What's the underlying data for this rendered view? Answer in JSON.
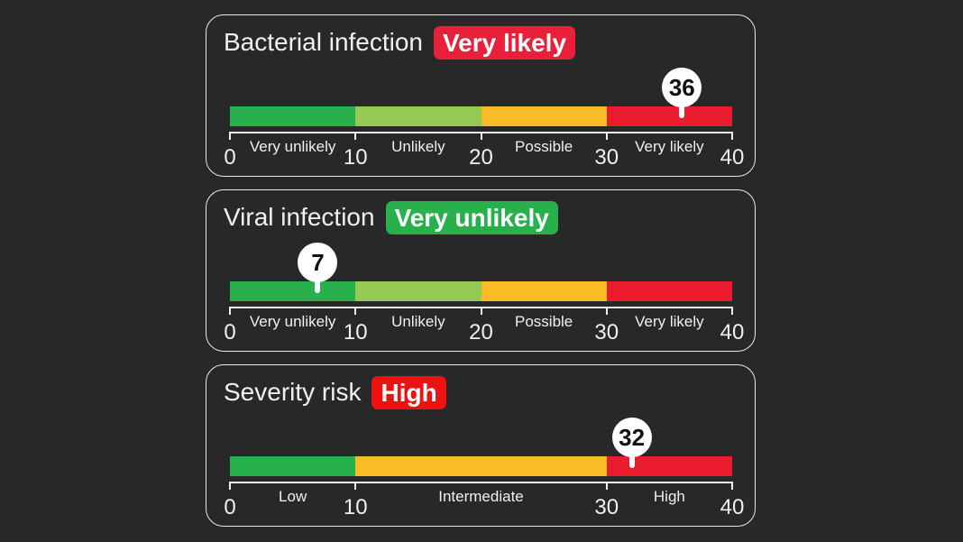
{
  "scale": {
    "min": 0,
    "max": 40,
    "ticks": [
      0,
      10,
      20,
      30,
      40
    ]
  },
  "cards": [
    {
      "title": "Bacterial infection",
      "badge": "Very likely",
      "badge_color": "#e8203a",
      "value": 36,
      "value_label": "36",
      "segments": [
        {
          "from": 0,
          "to": 10,
          "label": "Very unlikely",
          "color": "#27b04b"
        },
        {
          "from": 10,
          "to": 20,
          "label": "Unlikely",
          "color": "#95c952"
        },
        {
          "from": 20,
          "to": 30,
          "label": "Possible",
          "color": "#f9bc26"
        },
        {
          "from": 30,
          "to": 40,
          "label": "Very likely",
          "color": "#ec1c2f"
        }
      ],
      "ticks": [
        "0",
        "10",
        "20",
        "30",
        "40"
      ]
    },
    {
      "title": "Viral infection",
      "badge": "Very unlikely",
      "badge_color": "#27b04b",
      "value": 7,
      "value_label": "7",
      "segments": [
        {
          "from": 0,
          "to": 10,
          "label": "Very unlikely",
          "color": "#27b04b"
        },
        {
          "from": 10,
          "to": 20,
          "label": "Unlikely",
          "color": "#95c952"
        },
        {
          "from": 20,
          "to": 30,
          "label": "Possible",
          "color": "#f9bc26"
        },
        {
          "from": 30,
          "to": 40,
          "label": "Very likely",
          "color": "#ec1c2f"
        }
      ],
      "ticks": [
        "0",
        "10",
        "20",
        "30",
        "40"
      ]
    },
    {
      "title": "Severity risk",
      "badge": "High",
      "badge_color": "#ee1111",
      "value": 32,
      "value_label": "32",
      "segments": [
        {
          "from": 0,
          "to": 10,
          "label": "Low",
          "color": "#27b04b"
        },
        {
          "from": 10,
          "to": 30,
          "label": "Intermediate",
          "color": "#f9bc26"
        },
        {
          "from": 30,
          "to": 40,
          "label": "High",
          "color": "#ec1c2f"
        }
      ],
      "ticks": [
        "0",
        "10",
        "30",
        "40"
      ]
    }
  ]
}
